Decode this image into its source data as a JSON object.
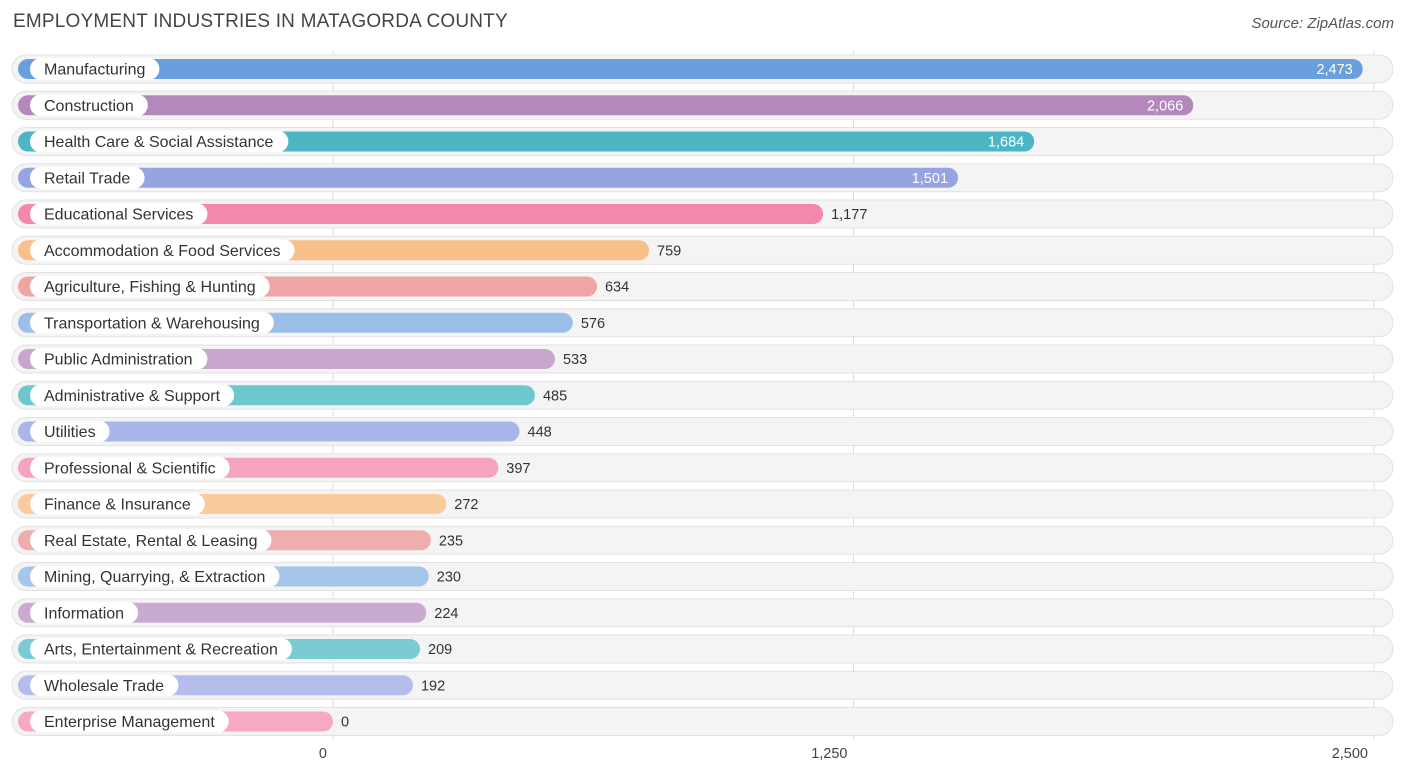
{
  "title": "EMPLOYMENT INDUSTRIES IN MATAGORDA COUNTY",
  "source": "Source: ZipAtlas.com",
  "chart_data": {
    "type": "bar",
    "orientation": "horizontal",
    "title": "EMPLOYMENT INDUSTRIES IN MATAGORDA COUNTY",
    "xlim": [
      0,
      2500
    ],
    "ticks": [
      {
        "value": 0,
        "label": "0"
      },
      {
        "value": 1250,
        "label": "1,250"
      },
      {
        "value": 2500,
        "label": "2,500"
      }
    ],
    "categories": [
      {
        "label": "Manufacturing",
        "value": 2473,
        "value_label": "2,473",
        "color": "#6a9fdd"
      },
      {
        "label": "Construction",
        "value": 2066,
        "value_label": "2,066",
        "color": "#b488bc"
      },
      {
        "label": "Health Care & Social Assistance",
        "value": 1684,
        "value_label": "1,684",
        "color": "#4db6c4"
      },
      {
        "label": "Retail Trade",
        "value": 1501,
        "value_label": "1,501",
        "color": "#96a5e2"
      },
      {
        "label": "Educational Services",
        "value": 1177,
        "value_label": "1,177",
        "color": "#f389aa"
      },
      {
        "label": "Accommodation & Food Services",
        "value": 759,
        "value_label": "759",
        "color": "#f9c08c"
      },
      {
        "label": "Agriculture, Fishing & Hunting",
        "value": 634,
        "value_label": "634",
        "color": "#eea5a4"
      },
      {
        "label": "Transportation & Warehousing",
        "value": 576,
        "value_label": "576",
        "color": "#9cbfe9"
      },
      {
        "label": "Public Administration",
        "value": 533,
        "value_label": "533",
        "color": "#c9a6cd"
      },
      {
        "label": "Administrative & Support",
        "value": 485,
        "value_label": "485",
        "color": "#6ec6cf"
      },
      {
        "label": "Utilities",
        "value": 448,
        "value_label": "448",
        "color": "#aab5e8"
      },
      {
        "label": "Professional & Scientific",
        "value": 397,
        "value_label": "397",
        "color": "#f5a3be"
      },
      {
        "label": "Finance & Insurance",
        "value": 272,
        "value_label": "272",
        "color": "#f9cb9c"
      },
      {
        "label": "Real Estate, Rental & Leasing",
        "value": 235,
        "value_label": "235",
        "color": "#eeaeae"
      },
      {
        "label": "Mining, Quarrying, & Extraction",
        "value": 230,
        "value_label": "230",
        "color": "#a5c5ea"
      },
      {
        "label": "Information",
        "value": 224,
        "value_label": "224",
        "color": "#c9abd1"
      },
      {
        "label": "Arts, Entertainment & Recreation",
        "value": 209,
        "value_label": "209",
        "color": "#7acbd3"
      },
      {
        "label": "Wholesale Trade",
        "value": 192,
        "value_label": "192",
        "color": "#b4bdeb"
      },
      {
        "label": "Enterprise Management",
        "value": 0,
        "value_label": "0",
        "color": "#f7a9c3"
      }
    ]
  }
}
